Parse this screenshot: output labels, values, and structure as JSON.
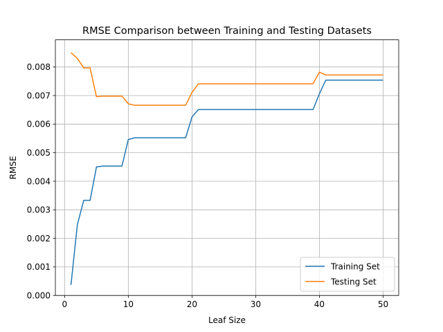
{
  "chart_data": {
    "type": "line",
    "title": "RMSE Comparison between Training and Testing Datasets",
    "xlabel": "Leaf Size",
    "ylabel": "RMSE",
    "xlim": [
      -1.45,
      52.45
    ],
    "ylim": [
      0.0,
      0.00895
    ],
    "xticks": [
      0,
      10,
      20,
      30,
      40,
      50
    ],
    "yticks": [
      0.0,
      0.001,
      0.002,
      0.003,
      0.004,
      0.005,
      0.006,
      0.007,
      0.008
    ],
    "ytick_labels": [
      "0.000",
      "0.001",
      "0.002",
      "0.003",
      "0.004",
      "0.005",
      "0.006",
      "0.007",
      "0.008"
    ],
    "grid": true,
    "legend_position": "lower right",
    "series": [
      {
        "name": "Training Set",
        "color": "#1f77b4",
        "x": [
          1,
          2,
          3,
          4,
          5,
          6,
          7,
          8,
          9,
          10,
          11,
          12,
          13,
          14,
          15,
          16,
          17,
          18,
          19,
          20,
          21,
          22,
          23,
          24,
          25,
          26,
          27,
          28,
          29,
          30,
          31,
          32,
          33,
          34,
          35,
          36,
          37,
          38,
          39,
          40,
          41,
          42,
          43,
          44,
          45,
          46,
          47,
          48,
          49,
          50
        ],
        "y": [
          0.00037,
          0.00248,
          0.00333,
          0.00333,
          0.0045,
          0.00453,
          0.00453,
          0.00453,
          0.00453,
          0.00546,
          0.00552,
          0.00552,
          0.00552,
          0.00552,
          0.00552,
          0.00552,
          0.00552,
          0.00552,
          0.00552,
          0.00625,
          0.00651,
          0.00651,
          0.00651,
          0.00651,
          0.00651,
          0.00651,
          0.00651,
          0.00651,
          0.00651,
          0.00651,
          0.00651,
          0.00651,
          0.00651,
          0.00651,
          0.00651,
          0.00651,
          0.00651,
          0.00651,
          0.00651,
          0.00706,
          0.00754,
          0.00754,
          0.00754,
          0.00754,
          0.00754,
          0.00754,
          0.00754,
          0.00754,
          0.00754,
          0.00754
        ]
      },
      {
        "name": "Testing Set",
        "color": "#ff7f0e",
        "x": [
          1,
          2,
          3,
          4,
          5,
          6,
          7,
          8,
          9,
          10,
          11,
          12,
          13,
          14,
          15,
          16,
          17,
          18,
          19,
          20,
          21,
          22,
          23,
          24,
          25,
          26,
          27,
          28,
          29,
          30,
          31,
          32,
          33,
          34,
          35,
          36,
          37,
          38,
          39,
          40,
          41,
          42,
          43,
          44,
          45,
          46,
          47,
          48,
          49,
          50
        ],
        "y": [
          0.0085,
          0.0083,
          0.00797,
          0.00797,
          0.00696,
          0.00698,
          0.00698,
          0.00698,
          0.00698,
          0.00671,
          0.00666,
          0.00666,
          0.00666,
          0.00666,
          0.00666,
          0.00666,
          0.00666,
          0.00666,
          0.00666,
          0.00711,
          0.00741,
          0.00741,
          0.00741,
          0.00741,
          0.00741,
          0.00741,
          0.00741,
          0.00741,
          0.00741,
          0.00741,
          0.00741,
          0.00741,
          0.00741,
          0.00741,
          0.00741,
          0.00741,
          0.00741,
          0.00741,
          0.00741,
          0.00782,
          0.00772,
          0.00772,
          0.00772,
          0.00772,
          0.00772,
          0.00772,
          0.00772,
          0.00772,
          0.00772,
          0.00772
        ]
      }
    ]
  }
}
